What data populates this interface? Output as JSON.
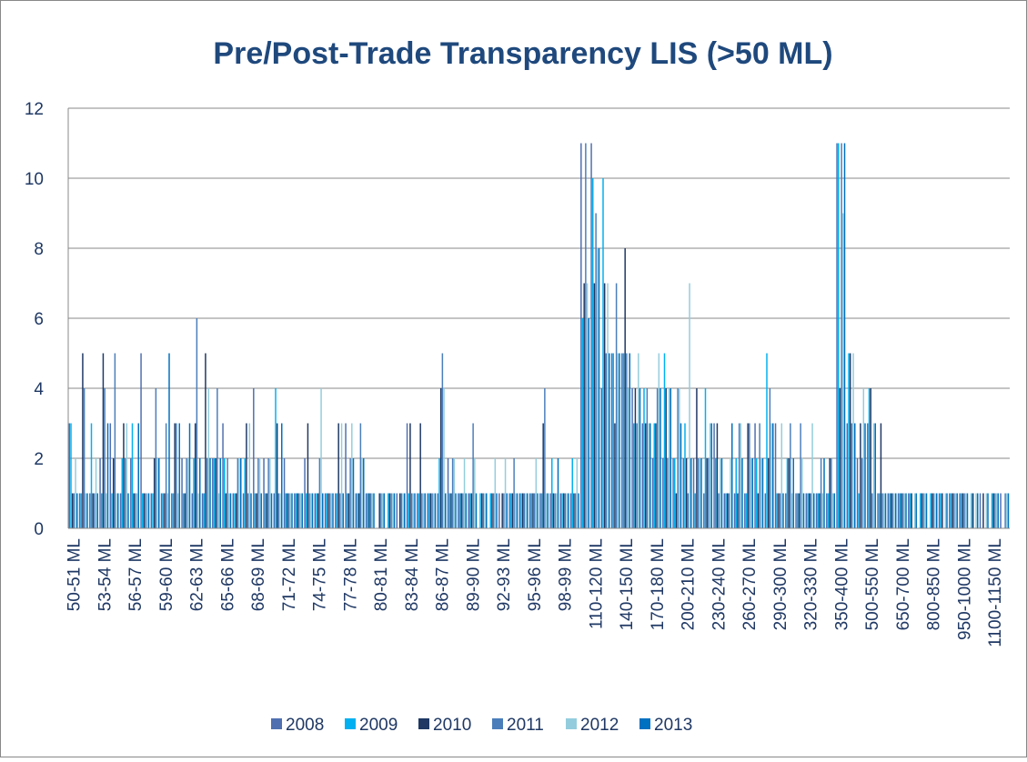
{
  "chart_data": {
    "type": "bar",
    "title": "Pre/Post-Trade Transparency LIS (>50 ML)",
    "categories": [
      "50-51 ML",
      null,
      null,
      "53-54 ML",
      null,
      null,
      "56-57 ML",
      null,
      null,
      "59-60 ML",
      null,
      null,
      "62-63 ML",
      null,
      null,
      "65-66 ML",
      null,
      null,
      "68-69 ML",
      null,
      null,
      "71-72 ML",
      null,
      null,
      "74-75 ML",
      null,
      null,
      "77-78 ML",
      null,
      null,
      "80-81 ML",
      null,
      null,
      "83-84 ML",
      null,
      null,
      "86-87 ML",
      null,
      null,
      "89-90 ML",
      null,
      null,
      "92-93 ML",
      null,
      null,
      "95-96 ML",
      null,
      null,
      "98-99 ML",
      null,
      null,
      "110-120 ML",
      null,
      null,
      "140-150 ML",
      null,
      null,
      "170-180 ML",
      null,
      null,
      "200-210 ML",
      null,
      null,
      "230-240 ML",
      null,
      null,
      "260-270 ML",
      null,
      null,
      "290-300 ML",
      null,
      null,
      "320-330 ML",
      null,
      null,
      "350-400 ML",
      null,
      null,
      "500-550 ML",
      null,
      null,
      "650-700 ML",
      null,
      null,
      "800-850 ML",
      null,
      null,
      "950-1000 ML",
      null,
      null,
      "1100-1150 ML",
      null
    ],
    "series": [
      {
        "name": "2008",
        "color": "#4f6fb0",
        "values": [
          3,
          1,
          1,
          2,
          3,
          1,
          2,
          5,
          1,
          1,
          1,
          2,
          1,
          1,
          2,
          3,
          1,
          1,
          4,
          2,
          1,
          2,
          1,
          2,
          1,
          1,
          1,
          3,
          1,
          1,
          0,
          0,
          1,
          3,
          1,
          1,
          1,
          2,
          1,
          1,
          0,
          0,
          1,
          1,
          1,
          1,
          1,
          1,
          1,
          1,
          11,
          11,
          4,
          5,
          5,
          4,
          3,
          2,
          2,
          2,
          2,
          2,
          1,
          3,
          1,
          1,
          1,
          3,
          1,
          3,
          1,
          1,
          1,
          1,
          1,
          11,
          3,
          2,
          3,
          1,
          1,
          1,
          1,
          0,
          0,
          1,
          1,
          1,
          0,
          1,
          0,
          1
        ]
      },
      {
        "name": "2009",
        "color": "#00b0f0",
        "values": [
          3,
          1,
          3,
          1,
          1,
          2,
          3,
          1,
          1,
          1,
          1,
          1,
          2,
          1,
          2,
          2,
          1,
          2,
          1,
          1,
          4,
          1,
          1,
          1,
          1,
          1,
          1,
          1,
          1,
          1,
          0,
          1,
          0,
          1,
          1,
          1,
          2,
          1,
          1,
          1,
          1,
          1,
          0,
          1,
          1,
          1,
          1,
          2,
          1,
          2,
          6,
          10,
          10,
          5,
          5,
          3,
          4,
          3,
          5,
          2,
          3,
          1,
          4,
          2,
          1,
          2,
          1,
          2,
          5,
          1,
          2,
          1,
          1,
          1,
          1,
          11,
          5,
          1,
          4,
          1,
          1,
          1,
          1,
          1,
          1,
          1,
          1,
          1,
          1,
          0,
          1,
          0
        ]
      },
      {
        "name": "2010",
        "color": "#1f3864",
        "values": [
          1,
          5,
          1,
          5,
          2,
          3,
          1,
          1,
          2,
          1,
          3,
          1,
          3,
          5,
          2,
          1,
          1,
          3,
          1,
          1,
          3,
          1,
          1,
          3,
          1,
          1,
          3,
          1,
          1,
          1,
          1,
          1,
          1,
          3,
          3,
          1,
          4,
          1,
          1,
          1,
          1,
          1,
          1,
          1,
          1,
          1,
          3,
          1,
          1,
          1,
          7,
          7,
          7,
          3,
          8,
          4,
          3,
          3,
          4,
          1,
          2,
          4,
          2,
          3,
          1,
          1,
          3,
          1,
          2,
          1,
          2,
          1,
          1,
          1,
          2,
          4,
          5,
          3,
          4,
          3,
          1,
          1,
          1,
          1,
          1,
          1,
          1,
          1,
          1,
          1,
          1,
          0
        ]
      },
      {
        "name": "2011",
        "color": "#4a7ebb",
        "values": [
          1,
          4,
          1,
          4,
          5,
          2,
          1,
          1,
          4,
          3,
          3,
          2,
          6,
          2,
          4,
          2,
          2,
          1,
          2,
          2,
          1,
          1,
          1,
          1,
          2,
          1,
          1,
          2,
          3,
          1,
          1,
          1,
          1,
          1,
          1,
          1,
          5,
          2,
          1,
          3,
          1,
          1,
          1,
          2,
          1,
          1,
          4,
          1,
          1,
          1,
          11,
          9,
          5,
          7,
          5,
          3,
          4,
          4,
          2,
          4,
          1,
          2,
          2,
          1,
          1,
          3,
          3,
          3,
          4,
          1,
          3,
          3,
          1,
          2,
          2,
          11,
          3,
          2,
          1,
          1,
          1,
          1,
          0,
          1,
          1,
          0,
          1,
          1,
          0,
          0,
          1,
          1
        ]
      },
      {
        "name": "2012",
        "color": "#93cddd",
        "values": [
          2,
          1,
          2,
          1,
          1,
          3,
          1,
          1,
          2,
          1,
          1,
          2,
          1,
          4,
          1,
          1,
          2,
          3,
          2,
          2,
          1,
          1,
          1,
          1,
          4,
          1,
          3,
          3,
          2,
          1,
          1,
          1,
          1,
          1,
          1,
          1,
          4,
          2,
          2,
          2,
          1,
          2,
          2,
          1,
          1,
          2,
          1,
          1,
          1,
          2,
          7,
          8,
          7,
          5,
          4,
          5,
          3,
          5,
          4,
          4,
          7,
          2,
          3,
          2,
          2,
          3,
          2,
          2,
          3,
          3,
          1,
          2,
          3,
          1,
          1,
          9,
          5,
          4,
          3,
          1,
          1,
          1,
          1,
          1,
          1,
          1,
          1,
          1,
          1,
          1,
          1,
          1
        ]
      },
      {
        "name": "2013",
        "color": "#0070c0",
        "values": [
          1,
          1,
          1,
          3,
          1,
          1,
          3,
          1,
          2,
          5,
          3,
          3,
          2,
          2,
          2,
          1,
          2,
          1,
          1,
          1,
          3,
          1,
          1,
          1,
          1,
          1,
          1,
          2,
          2,
          1,
          1,
          1,
          1,
          1,
          1,
          1,
          1,
          1,
          1,
          1,
          1,
          1,
          1,
          1,
          1,
          1,
          1,
          2,
          1,
          1,
          6,
          8,
          5,
          5,
          5,
          4,
          3,
          4,
          4,
          3,
          2,
          2,
          3,
          2,
          3,
          2,
          2,
          2,
          3,
          1,
          2,
          1,
          1,
          2,
          1,
          11,
          3,
          3,
          3,
          1,
          1,
          1,
          1,
          1,
          1,
          1,
          1,
          1,
          1,
          1,
          1,
          1
        ]
      }
    ],
    "ylim": [
      0,
      12
    ],
    "yticks": [
      0,
      2,
      4,
      6,
      8,
      10,
      12
    ],
    "grid": true,
    "legend": "bottom"
  }
}
